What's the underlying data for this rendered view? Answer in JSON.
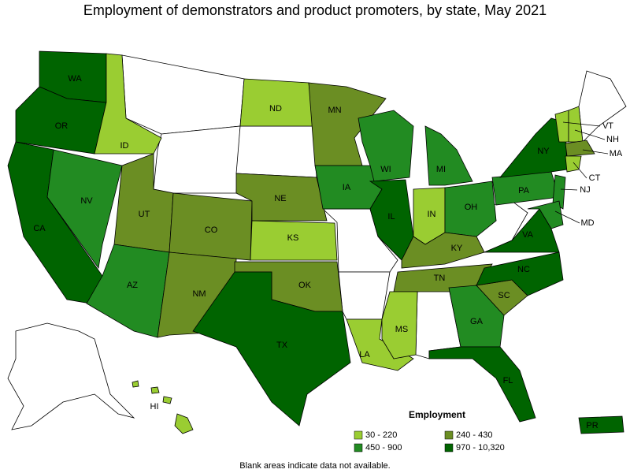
{
  "title": "Employment of demonstrators and product promoters, by state, May 2021",
  "legend": {
    "title": "Employment",
    "items": [
      {
        "label": "30 - 220",
        "color": "#9acd32"
      },
      {
        "label": "240 - 430",
        "color": "#6b8e23"
      },
      {
        "label": "450 - 900",
        "color": "#228b22"
      },
      {
        "label": "970 - 10,320",
        "color": "#006400"
      }
    ]
  },
  "note": "Blank areas indicate data not available.",
  "states": [
    {
      "label": "WA",
      "color": "#006400"
    },
    {
      "label": "OR",
      "color": "#006400"
    },
    {
      "label": "CA",
      "color": "#006400"
    },
    {
      "label": "NV",
      "color": "#228b22"
    },
    {
      "label": "ID",
      "color": "#9acd32"
    },
    {
      "label": "UT",
      "color": "#6b8e23"
    },
    {
      "label": "AZ",
      "color": "#228b22"
    },
    {
      "label": "CO",
      "color": "#6b8e23"
    },
    {
      "label": "NM",
      "color": "#6b8e23"
    },
    {
      "label": "ND",
      "color": "#9acd32"
    },
    {
      "label": "NE",
      "color": "#6b8e23"
    },
    {
      "label": "KS",
      "color": "#9acd32"
    },
    {
      "label": "OK",
      "color": "#6b8e23"
    },
    {
      "label": "TX",
      "color": "#006400"
    },
    {
      "label": "MN",
      "color": "#6b8e23"
    },
    {
      "label": "IA",
      "color": "#228b22"
    },
    {
      "label": "LA",
      "color": "#9acd32"
    },
    {
      "label": "WI",
      "color": "#228b22"
    },
    {
      "label": "IL",
      "color": "#006400"
    },
    {
      "label": "MI",
      "color": "#228b22"
    },
    {
      "label": "IN",
      "color": "#9acd32"
    },
    {
      "label": "OH",
      "color": "#228b22"
    },
    {
      "label": "KY",
      "color": "#6b8e23"
    },
    {
      "label": "TN",
      "color": "#6b8e23"
    },
    {
      "label": "MS",
      "color": "#9acd32"
    },
    {
      "label": "GA",
      "color": "#228b22"
    },
    {
      "label": "FL",
      "color": "#006400"
    },
    {
      "label": "SC",
      "color": "#6b8e23"
    },
    {
      "label": "NC",
      "color": "#006400"
    },
    {
      "label": "VA",
      "color": "#006400"
    },
    {
      "label": "PA",
      "color": "#228b22"
    },
    {
      "label": "NY",
      "color": "#006400"
    },
    {
      "label": "VT",
      "color": "#9acd32"
    },
    {
      "label": "NH",
      "color": "#9acd32"
    },
    {
      "label": "MA",
      "color": "#6b8e23"
    },
    {
      "label": "CT",
      "color": "#9acd32"
    },
    {
      "label": "NJ",
      "color": "#228b22"
    },
    {
      "label": "MD",
      "color": "#228b22"
    },
    {
      "label": "PR",
      "color": "#006400"
    },
    {
      "label": "HI",
      "color": "#9acd32"
    }
  ]
}
